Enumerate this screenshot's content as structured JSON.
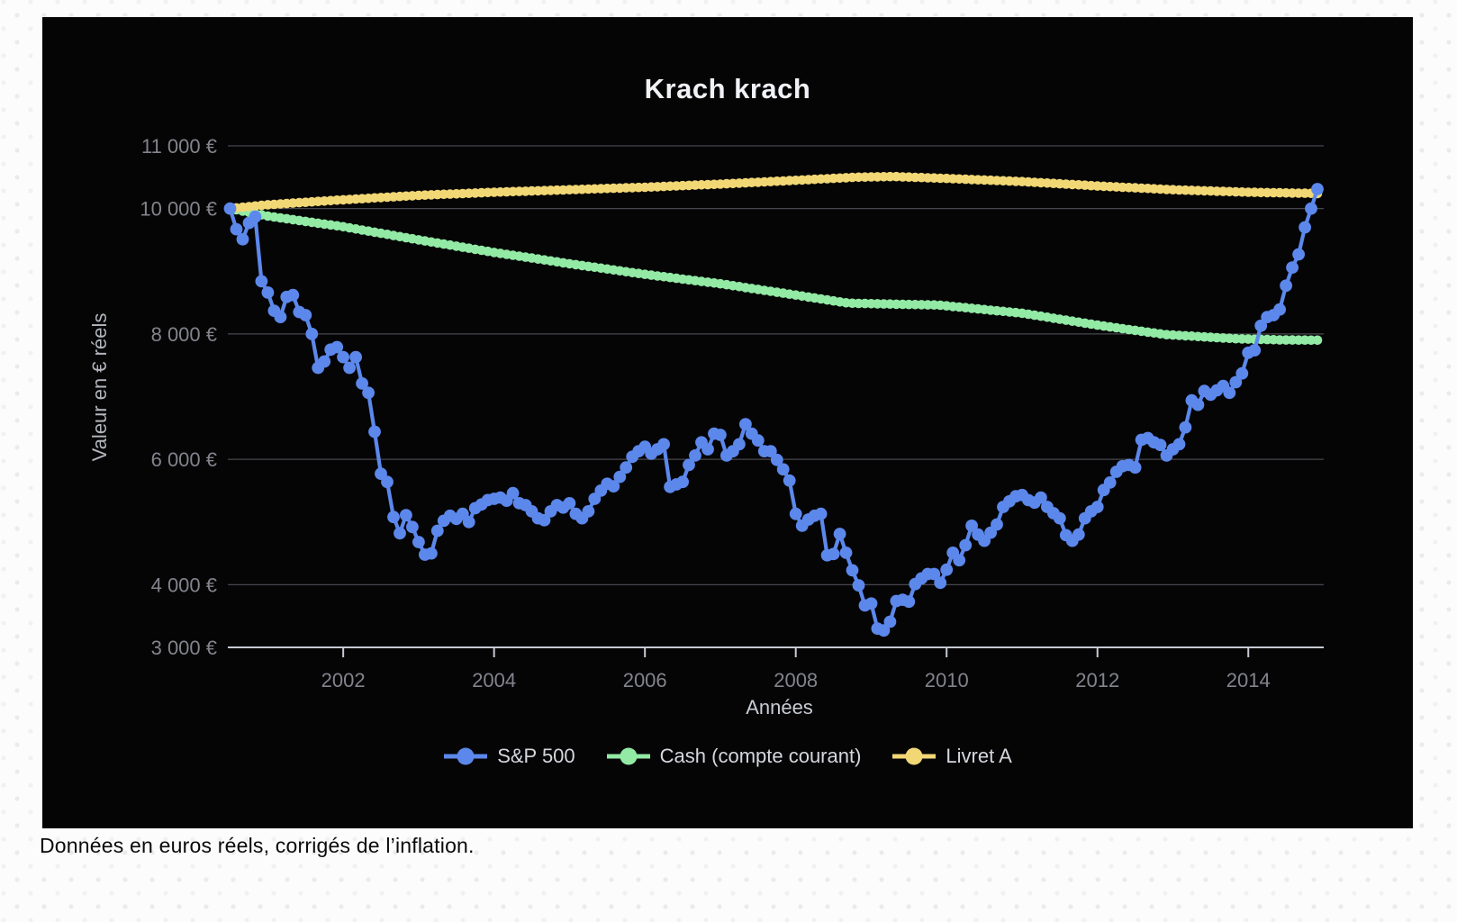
{
  "page": {
    "caption": "Données en euros réels, corrigés de l’inflation."
  },
  "chart": {
    "title": "Krach krach",
    "panel_bg": "#050506",
    "grid_color": "#46474d",
    "axis_line_color": "#c7c9d3",
    "tick_label_color": "#83848c",
    "y_axis": {
      "title": "Valeur en € réels",
      "min": 3000,
      "max": 11000,
      "ticks": [
        {
          "value": 3000,
          "label": "3 000 €",
          "gridline": false
        },
        {
          "value": 4000,
          "label": "4 000 €",
          "gridline": true
        },
        {
          "value": 6000,
          "label": "6 000 €",
          "gridline": true
        },
        {
          "value": 8000,
          "label": "8 000 €",
          "gridline": true
        },
        {
          "value": 10000,
          "label": "10 000 €",
          "gridline": true
        },
        {
          "value": 11000,
          "label": "11 000 €",
          "gridline": true
        }
      ]
    },
    "x_axis": {
      "title": "Années",
      "min": 2000.47,
      "max": 2015.0,
      "ticks": [
        {
          "value": 2002,
          "label": "2002"
        },
        {
          "value": 2004,
          "label": "2004"
        },
        {
          "value": 2006,
          "label": "2006"
        },
        {
          "value": 2008,
          "label": "2008"
        },
        {
          "value": 2010,
          "label": "2010"
        },
        {
          "value": 2012,
          "label": "2012"
        },
        {
          "value": 2014,
          "label": "2014"
        }
      ]
    },
    "legend": [
      {
        "label": "S&P 500",
        "color": "#5c88ec"
      },
      {
        "label": "Cash (compte courant)",
        "color": "#92eaa5"
      },
      {
        "label": "Livret A",
        "color": "#f2d775"
      }
    ]
  },
  "chart_data": {
    "type": "line",
    "title": "Krach krach",
    "xlabel": "Années",
    "ylabel": "Valeur en € réels",
    "ylim": [
      3000,
      11000
    ],
    "xlim": [
      2000.47,
      2015.0
    ],
    "grid": true,
    "legend_position": "bottom",
    "unit": "€ réels (inflation ajustée)",
    "series": [
      {
        "name": "S&P 500",
        "color": "#5c88ec",
        "style": "line+dots",
        "frequency": "monthly",
        "start": "2000-07",
        "values": [
          10000,
          9670,
          9510,
          9770,
          9870,
          8840,
          8660,
          8370,
          8270,
          8590,
          8620,
          8350,
          8300,
          8000,
          7460,
          7560,
          7750,
          7790,
          7630,
          7460,
          7630,
          7210,
          7060,
          6440,
          5770,
          5640,
          5080,
          4820,
          5110,
          4920,
          4680,
          4480,
          4500,
          4860,
          5020,
          5100,
          5050,
          5130,
          5000,
          5220,
          5280,
          5350,
          5370,
          5390,
          5340,
          5460,
          5300,
          5270,
          5170,
          5060,
          5030,
          5170,
          5270,
          5230,
          5300,
          5130,
          5060,
          5170,
          5370,
          5500,
          5610,
          5570,
          5720,
          5870,
          6040,
          6130,
          6200,
          6090,
          6160,
          6240,
          5560,
          5600,
          5640,
          5910,
          6060,
          6270,
          6160,
          6410,
          6390,
          6060,
          6130,
          6240,
          6560,
          6410,
          6300,
          6130,
          6130,
          5990,
          5840,
          5660,
          5130,
          4940,
          5040,
          5100,
          5130,
          4470,
          4490,
          4810,
          4510,
          4230,
          3990,
          3670,
          3700,
          3300,
          3270,
          3410,
          3740,
          3760,
          3730,
          4010,
          4100,
          4170,
          4170,
          4030,
          4240,
          4510,
          4390,
          4630,
          4940,
          4800,
          4700,
          4830,
          4960,
          5240,
          5330,
          5410,
          5430,
          5350,
          5310,
          5390,
          5240,
          5140,
          5060,
          4790,
          4700,
          4800,
          5060,
          5170,
          5240,
          5510,
          5630,
          5800,
          5890,
          5910,
          5870,
          6310,
          6340,
          6270,
          6230,
          6060,
          6160,
          6240,
          6510,
          6940,
          6870,
          7090,
          7030,
          7100,
          7170,
          7060,
          7230,
          7370,
          7700,
          7740,
          8130,
          8270,
          8300,
          8390,
          8770,
          9060,
          9270,
          9700,
          10000,
          10310
        ]
      },
      {
        "name": "Cash (compte courant)",
        "color": "#92eaa5",
        "style": "thick-dotted-line",
        "anchors": [
          [
            2000.5,
            10000
          ],
          [
            2001,
            9880
          ],
          [
            2002,
            9710
          ],
          [
            2003,
            9500
          ],
          [
            2004,
            9300
          ],
          [
            2005,
            9120
          ],
          [
            2006,
            8950
          ],
          [
            2007,
            8800
          ],
          [
            2008,
            8620
          ],
          [
            2008.7,
            8490
          ],
          [
            2009.9,
            8460
          ],
          [
            2011,
            8330
          ],
          [
            2012,
            8140
          ],
          [
            2012.9,
            7990
          ],
          [
            2013.8,
            7925
          ],
          [
            2014.4,
            7905
          ],
          [
            2014.95,
            7900
          ]
        ]
      },
      {
        "name": "Livret A",
        "color": "#f2d775",
        "style": "thick-dotted-line",
        "anchors": [
          [
            2000.5,
            10000
          ],
          [
            2001,
            10060
          ],
          [
            2002,
            10140
          ],
          [
            2003,
            10210
          ],
          [
            2004,
            10260
          ],
          [
            2005,
            10300
          ],
          [
            2006,
            10340
          ],
          [
            2007,
            10390
          ],
          [
            2008,
            10450
          ],
          [
            2008.8,
            10500
          ],
          [
            2009.3,
            10510
          ],
          [
            2010,
            10480
          ],
          [
            2011,
            10430
          ],
          [
            2012,
            10360
          ],
          [
            2013,
            10300
          ],
          [
            2014,
            10260
          ],
          [
            2014.95,
            10240
          ]
        ]
      }
    ]
  }
}
